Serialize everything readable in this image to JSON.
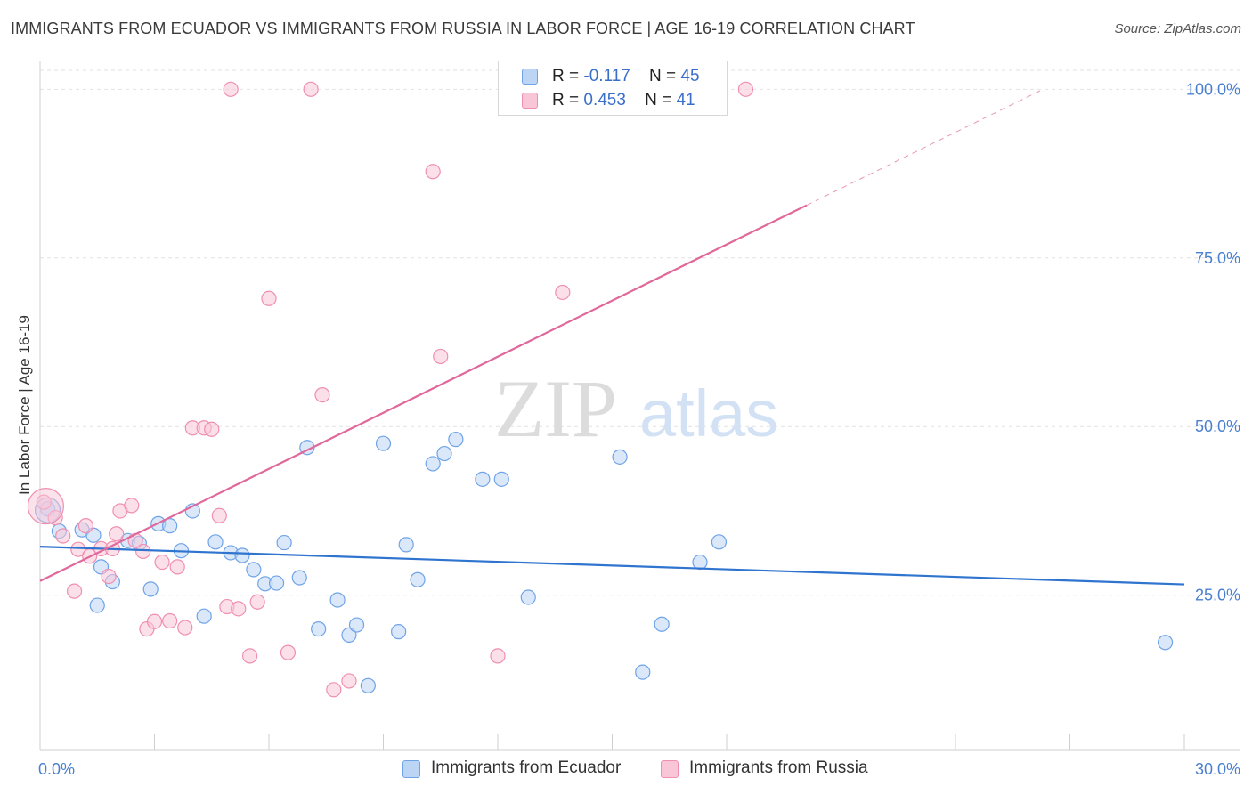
{
  "header": {
    "title": "IMMIGRANTS FROM ECUADOR VS IMMIGRANTS FROM RUSSIA IN LABOR FORCE | AGE 16-19 CORRELATION CHART",
    "source": "Source: ZipAtlas.com"
  },
  "watermark": {
    "zip": "ZIP",
    "atlas": "atlas"
  },
  "legend_top": {
    "rows": [
      {
        "r_label": "R =",
        "r_value": "-0.117",
        "n_label": "N =",
        "n_value": "45"
      },
      {
        "r_label": "R =",
        "r_value": "0.453",
        "n_label": "N =",
        "n_value": "41"
      }
    ]
  },
  "chart_data": {
    "type": "scatter",
    "title": "IMMIGRANTS FROM ECUADOR VS IMMIGRANTS FROM RUSSIA IN LABOR FORCE | AGE 16-19 CORRELATION CHART",
    "xlabel": "",
    "ylabel": "In Labor Force | Age 16-19",
    "xlim": [
      0,
      30
    ],
    "ylim": [
      2,
      104
    ],
    "x_tick_labels": [
      {
        "value": 0,
        "label": "0.0%"
      },
      {
        "value": 30,
        "label": "30.0%"
      }
    ],
    "y_tick_labels": [
      {
        "value": 25,
        "label": "25.0%"
      },
      {
        "value": 50,
        "label": "50.0%"
      },
      {
        "value": 75,
        "label": "75.0%"
      },
      {
        "value": 100,
        "label": "100.0%"
      }
    ],
    "grid": true,
    "legend_position": "bottom",
    "series": [
      {
        "name": "Immigrants from Ecuador",
        "color": "#6fa3e8",
        "fill": "#bcd5f5",
        "r": -0.117,
        "n": 45,
        "trend": {
          "x0": 0,
          "y0": 32.2,
          "x1": 30,
          "y1": 26.6,
          "dashed_from": null
        },
        "points": [
          [
            0.2,
            37.8
          ],
          [
            0.5,
            34.5
          ],
          [
            1.1,
            34.7
          ],
          [
            1.4,
            33.9
          ],
          [
            1.5,
            23.5
          ],
          [
            1.6,
            29.2
          ],
          [
            1.9,
            27.0
          ],
          [
            2.3,
            33.1
          ],
          [
            2.6,
            32.7
          ],
          [
            2.9,
            25.9
          ],
          [
            3.1,
            35.6
          ],
          [
            3.4,
            35.3
          ],
          [
            3.7,
            31.6
          ],
          [
            4.0,
            37.5
          ],
          [
            4.3,
            21.9
          ],
          [
            4.6,
            32.9
          ],
          [
            5.0,
            31.3
          ],
          [
            5.3,
            30.9
          ],
          [
            5.6,
            28.8
          ],
          [
            5.9,
            26.7
          ],
          [
            6.2,
            26.8
          ],
          [
            6.4,
            32.8
          ],
          [
            6.8,
            27.6
          ],
          [
            7.0,
            46.9
          ],
          [
            7.3,
            20.0
          ],
          [
            7.8,
            24.3
          ],
          [
            8.1,
            19.1
          ],
          [
            8.3,
            20.6
          ],
          [
            8.6,
            11.6
          ],
          [
            9.0,
            47.5
          ],
          [
            9.4,
            19.6
          ],
          [
            9.6,
            32.5
          ],
          [
            9.9,
            27.3
          ],
          [
            10.3,
            44.5
          ],
          [
            10.6,
            46.0
          ],
          [
            10.9,
            48.1
          ],
          [
            11.6,
            42.2
          ],
          [
            12.1,
            42.2
          ],
          [
            12.8,
            24.7
          ],
          [
            15.2,
            45.5
          ],
          [
            15.8,
            13.6
          ],
          [
            16.3,
            20.7
          ],
          [
            17.3,
            29.9
          ],
          [
            17.8,
            32.9
          ],
          [
            29.5,
            18.0
          ]
        ]
      },
      {
        "name": "Immigrants from Russia",
        "color": "#f08fb0",
        "fill": "#f9c6d7",
        "r": 0.453,
        "n": 41,
        "trend": {
          "x0": 0,
          "y0": 27.1,
          "x1": 26.3,
          "y1": 100,
          "dashed_from": 20.1
        },
        "points": [
          [
            0.1,
            38.8
          ],
          [
            0.6,
            33.8
          ],
          [
            0.9,
            25.6
          ],
          [
            1.0,
            31.8
          ],
          [
            1.2,
            35.3
          ],
          [
            1.3,
            30.8
          ],
          [
            1.6,
            31.9
          ],
          [
            1.8,
            27.8
          ],
          [
            2.0,
            34.1
          ],
          [
            2.1,
            37.5
          ],
          [
            2.4,
            38.3
          ],
          [
            2.7,
            31.5
          ],
          [
            2.8,
            20.0
          ],
          [
            3.0,
            21.1
          ],
          [
            3.2,
            29.9
          ],
          [
            3.4,
            21.2
          ],
          [
            3.6,
            29.2
          ],
          [
            3.8,
            20.2
          ],
          [
            4.0,
            49.8
          ],
          [
            4.3,
            49.8
          ],
          [
            4.5,
            49.6
          ],
          [
            4.7,
            36.8
          ],
          [
            4.9,
            23.3
          ],
          [
            5.0,
            100.0
          ],
          [
            5.2,
            23.0
          ],
          [
            5.5,
            16.0
          ],
          [
            5.7,
            24.0
          ],
          [
            6.0,
            69.0
          ],
          [
            6.5,
            16.5
          ],
          [
            7.1,
            100.0
          ],
          [
            7.4,
            54.7
          ],
          [
            7.7,
            11.0
          ],
          [
            8.1,
            12.3
          ],
          [
            10.3,
            87.8
          ],
          [
            10.5,
            60.4
          ],
          [
            12.0,
            16.0
          ],
          [
            13.7,
            69.9
          ],
          [
            18.5,
            100.0
          ],
          [
            0.4,
            36.5
          ],
          [
            1.9,
            31.9
          ],
          [
            2.5,
            33.1
          ]
        ]
      }
    ]
  },
  "legend_bottom": {
    "items": [
      {
        "label": "Immigrants from Ecuador"
      },
      {
        "label": "Immigrants from Russia"
      }
    ]
  }
}
